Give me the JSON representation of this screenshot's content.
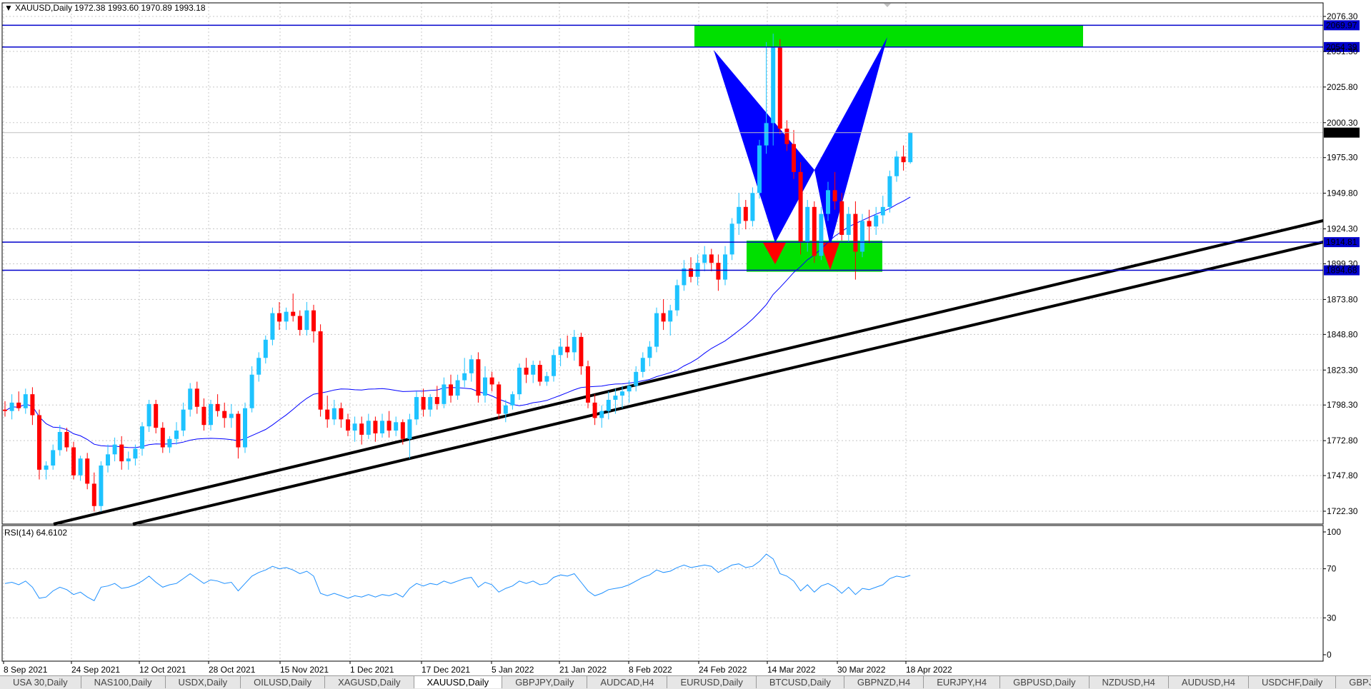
{
  "header": {
    "menu_arrow": "▼",
    "symbol_timeframe": "XAUUSD,Daily",
    "ohlc": "1972.38 1993.60 1970.89 1993.18"
  },
  "colors": {
    "bull": "#1ec3ff",
    "bear": "#ff0000",
    "ma": "#0000ff",
    "trendline": "#000000",
    "hline": "#0000cc",
    "zone": "#00e000",
    "pattern": "#0000ff",
    "rsi": "#1e90ff",
    "grid": "#c8c8c8"
  },
  "price_axis": {
    "labels": [
      "2076.30",
      "2051.30",
      "2025.80",
      "2000.30",
      "1975.30",
      "1949.80",
      "1924.30",
      "1899.30",
      "1873.80",
      "1848.80",
      "1823.30",
      "1798.30",
      "1772.80",
      "1747.80",
      "1722.30"
    ],
    "current_price": "1993.18",
    "hline_labels": [
      "2069.97",
      "2054.39",
      "1914.81",
      "1894.68"
    ]
  },
  "time_axis": {
    "labels": [
      "8 Sep 2021",
      "24 Sep 2021",
      "12 Oct 2021",
      "28 Oct 2021",
      "15 Nov 2021",
      "1 Dec 2021",
      "17 Dec 2021",
      "5 Jan 2022",
      "21 Jan 2022",
      "8 Feb 2022",
      "24 Feb 2022",
      "14 Mar 2022",
      "30 Mar 2022",
      "18 Apr 2022"
    ]
  },
  "rsi": {
    "label": "RSI(14) 64.6102",
    "axis_labels": [
      "100",
      "70",
      "30",
      "0"
    ]
  },
  "tabs": [
    {
      "label": "USA 30,Daily",
      "active": false
    },
    {
      "label": "NAS100,Daily",
      "active": false
    },
    {
      "label": "USDX,Daily",
      "active": false
    },
    {
      "label": "OILUSD,Daily",
      "active": false
    },
    {
      "label": "XAGUSD,Daily",
      "active": false
    },
    {
      "label": "XAUUSD,Daily",
      "active": true
    },
    {
      "label": "GBPJPY,Daily",
      "active": false
    },
    {
      "label": "AUDCAD,H4",
      "active": false
    },
    {
      "label": "EURUSD,Daily",
      "active": false
    },
    {
      "label": "BTCUSD,Daily",
      "active": false
    },
    {
      "label": "GBPNZD,H4",
      "active": false
    },
    {
      "label": "EURJPY,H4",
      "active": false
    },
    {
      "label": "GBPUSD,Daily",
      "active": false
    },
    {
      "label": "NZDUSD,H4",
      "active": false
    },
    {
      "label": "AUDUSD,H4",
      "active": false
    },
    {
      "label": "USDCHF,Daily",
      "active": false
    },
    {
      "label": "GBPJ…",
      "active": false
    }
  ],
  "chart_data": {
    "type": "candlestick",
    "symbol": "XAUUSD",
    "timeframe": "Daily",
    "ylim": [
      1710,
      2085
    ],
    "ohlc": [
      [
        1795,
        1801,
        1790,
        1794
      ],
      [
        1794,
        1806,
        1788,
        1800
      ],
      [
        1800,
        1808,
        1794,
        1796
      ],
      [
        1796,
        1810,
        1792,
        1806
      ],
      [
        1806,
        1811,
        1784,
        1791
      ],
      [
        1791,
        1795,
        1745,
        1752
      ],
      [
        1752,
        1758,
        1745,
        1755
      ],
      [
        1755,
        1770,
        1752,
        1766
      ],
      [
        1766,
        1784,
        1762,
        1779
      ],
      [
        1779,
        1782,
        1765,
        1768
      ],
      [
        1768,
        1772,
        1745,
        1748
      ],
      [
        1748,
        1762,
        1744,
        1760
      ],
      [
        1760,
        1764,
        1738,
        1742
      ],
      [
        1742,
        1750,
        1722,
        1726
      ],
      [
        1726,
        1758,
        1722,
        1755
      ],
      [
        1755,
        1770,
        1750,
        1763
      ],
      [
        1763,
        1775,
        1758,
        1770
      ],
      [
        1770,
        1776,
        1752,
        1758
      ],
      [
        1758,
        1765,
        1752,
        1760
      ],
      [
        1760,
        1770,
        1755,
        1767
      ],
      [
        1767,
        1786,
        1762,
        1783
      ],
      [
        1783,
        1802,
        1779,
        1799
      ],
      [
        1799,
        1802,
        1778,
        1782
      ],
      [
        1782,
        1786,
        1764,
        1768
      ],
      [
        1768,
        1776,
        1764,
        1774
      ],
      [
        1774,
        1786,
        1770,
        1780
      ],
      [
        1780,
        1800,
        1776,
        1795
      ],
      [
        1795,
        1814,
        1790,
        1810
      ],
      [
        1810,
        1815,
        1792,
        1797
      ],
      [
        1797,
        1803,
        1780,
        1784
      ],
      [
        1784,
        1802,
        1780,
        1799
      ],
      [
        1799,
        1806,
        1790,
        1794
      ],
      [
        1794,
        1800,
        1782,
        1789
      ],
      [
        1789,
        1799,
        1782,
        1792
      ],
      [
        1792,
        1794,
        1760,
        1768
      ],
      [
        1768,
        1800,
        1764,
        1796
      ],
      [
        1796,
        1826,
        1793,
        1820
      ],
      [
        1820,
        1836,
        1815,
        1832
      ],
      [
        1832,
        1848,
        1828,
        1845
      ],
      [
        1845,
        1868,
        1841,
        1864
      ],
      [
        1864,
        1872,
        1852,
        1858
      ],
      [
        1858,
        1868,
        1852,
        1865
      ],
      [
        1865,
        1878,
        1858,
        1862
      ],
      [
        1862,
        1866,
        1848,
        1852
      ],
      [
        1852,
        1872,
        1848,
        1866
      ],
      [
        1866,
        1870,
        1843,
        1851
      ],
      [
        1851,
        1856,
        1790,
        1795
      ],
      [
        1795,
        1805,
        1782,
        1788
      ],
      [
        1788,
        1802,
        1784,
        1796
      ],
      [
        1796,
        1800,
        1782,
        1788
      ],
      [
        1788,
        1792,
        1776,
        1780
      ],
      [
        1780,
        1790,
        1772,
        1785
      ],
      [
        1785,
        1790,
        1770,
        1777
      ],
      [
        1777,
        1792,
        1774,
        1787
      ],
      [
        1787,
        1790,
        1772,
        1778
      ],
      [
        1778,
        1792,
        1775,
        1787
      ],
      [
        1787,
        1794,
        1775,
        1780
      ],
      [
        1780,
        1790,
        1776,
        1786
      ],
      [
        1786,
        1788,
        1770,
        1774
      ],
      [
        1774,
        1792,
        1760,
        1788
      ],
      [
        1788,
        1808,
        1784,
        1804
      ],
      [
        1804,
        1810,
        1790,
        1795
      ],
      [
        1795,
        1806,
        1790,
        1804
      ],
      [
        1804,
        1812,
        1795,
        1799
      ],
      [
        1799,
        1818,
        1796,
        1813
      ],
      [
        1813,
        1820,
        1800,
        1805
      ],
      [
        1805,
        1820,
        1802,
        1816
      ],
      [
        1816,
        1832,
        1811,
        1821
      ],
      [
        1821,
        1834,
        1815,
        1831
      ],
      [
        1831,
        1836,
        1800,
        1805
      ],
      [
        1805,
        1826,
        1800,
        1818
      ],
      [
        1818,
        1822,
        1808,
        1813
      ],
      [
        1813,
        1815,
        1788,
        1792
      ],
      [
        1792,
        1802,
        1786,
        1798
      ],
      [
        1798,
        1808,
        1795,
        1806
      ],
      [
        1806,
        1828,
        1802,
        1825
      ],
      [
        1825,
        1832,
        1814,
        1820
      ],
      [
        1820,
        1830,
        1814,
        1827
      ],
      [
        1827,
        1830,
        1812,
        1815
      ],
      [
        1815,
        1822,
        1812,
        1819
      ],
      [
        1819,
        1838,
        1815,
        1834
      ],
      [
        1834,
        1846,
        1826,
        1840
      ],
      [
        1840,
        1848,
        1832,
        1836
      ],
      [
        1836,
        1852,
        1830,
        1847
      ],
      [
        1847,
        1850,
        1820,
        1826
      ],
      [
        1826,
        1830,
        1796,
        1800
      ],
      [
        1800,
        1806,
        1784,
        1789
      ],
      [
        1789,
        1798,
        1782,
        1794
      ],
      [
        1794,
        1808,
        1788,
        1802
      ],
      [
        1802,
        1810,
        1792,
        1805
      ],
      [
        1805,
        1812,
        1796,
        1808
      ],
      [
        1808,
        1816,
        1800,
        1812
      ],
      [
        1812,
        1826,
        1808,
        1822
      ],
      [
        1822,
        1836,
        1818,
        1832
      ],
      [
        1832,
        1844,
        1826,
        1840
      ],
      [
        1840,
        1868,
        1836,
        1864
      ],
      [
        1864,
        1874,
        1852,
        1858
      ],
      [
        1858,
        1870,
        1848,
        1866
      ],
      [
        1866,
        1888,
        1862,
        1884
      ],
      [
        1884,
        1902,
        1880,
        1896
      ],
      [
        1896,
        1904,
        1886,
        1890
      ],
      [
        1890,
        1906,
        1884,
        1900
      ],
      [
        1900,
        1912,
        1894,
        1906
      ],
      [
        1906,
        1910,
        1894,
        1900
      ],
      [
        1900,
        1906,
        1880,
        1888
      ],
      [
        1888,
        1912,
        1884,
        1906
      ],
      [
        1906,
        1932,
        1902,
        1928
      ],
      [
        1928,
        1950,
        1920,
        1940
      ],
      [
        1940,
        1945,
        1924,
        1930
      ],
      [
        1930,
        1954,
        1926,
        1950
      ],
      [
        1950,
        1988,
        1946,
        1984
      ],
      [
        1984,
        2058,
        1978,
        2000
      ],
      [
        2000,
        2064,
        1984,
        2054
      ],
      [
        2054,
        2060,
        1992,
        1996
      ],
      [
        1996,
        2002,
        1980,
        1985
      ],
      [
        1985,
        1995,
        1960,
        1965
      ],
      [
        1965,
        1972,
        1906,
        1915
      ],
      [
        1915,
        1945,
        1908,
        1940
      ],
      [
        1940,
        1944,
        1900,
        1905
      ],
      [
        1905,
        1940,
        1902,
        1935
      ],
      [
        1935,
        1958,
        1930,
        1952
      ],
      [
        1952,
        1965,
        1938,
        1944
      ],
      [
        1944,
        1950,
        1916,
        1920
      ],
      [
        1920,
        1940,
        1915,
        1935
      ],
      [
        1935,
        1944,
        1888,
        1908
      ],
      [
        1908,
        1935,
        1904,
        1930
      ],
      [
        1930,
        1938,
        1914,
        1926
      ],
      [
        1926,
        1940,
        1920,
        1934
      ],
      [
        1934,
        1948,
        1928,
        1940
      ],
      [
        1940,
        1966,
        1936,
        1962
      ],
      [
        1962,
        1980,
        1958,
        1976
      ],
      [
        1976,
        1984,
        1966,
        1972
      ],
      [
        1972,
        1993.6,
        1970.89,
        1993.18
      ]
    ],
    "ma_period_shown": "50",
    "rsi_values": [
      58,
      59,
      57,
      60,
      55,
      46,
      47,
      52,
      55,
      53,
      49,
      51,
      47,
      44,
      55,
      56,
      58,
      54,
      55,
      57,
      60,
      64,
      59,
      55,
      57,
      58,
      62,
      66,
      62,
      58,
      61,
      60,
      58,
      59,
      52,
      58,
      64,
      67,
      69,
      72,
      70,
      71,
      69,
      66,
      68,
      64,
      50,
      48,
      50,
      48,
      46,
      48,
      47,
      49,
      47,
      49,
      48,
      50,
      47,
      54,
      58,
      56,
      58,
      57,
      60,
      58,
      60,
      62,
      63,
      55,
      59,
      57,
      51,
      54,
      56,
      60,
      58,
      60,
      57,
      58,
      63,
      65,
      64,
      66,
      59,
      52,
      48,
      50,
      53,
      54,
      55,
      57,
      60,
      63,
      65,
      69,
      67,
      68,
      71,
      73,
      71,
      72,
      73,
      72,
      67,
      70,
      73,
      74,
      71,
      72,
      76,
      82,
      78,
      66,
      64,
      60,
      52,
      57,
      51,
      56,
      58,
      55,
      50,
      55,
      49,
      54,
      53,
      55,
      57,
      62,
      64,
      63,
      64.61
    ]
  }
}
